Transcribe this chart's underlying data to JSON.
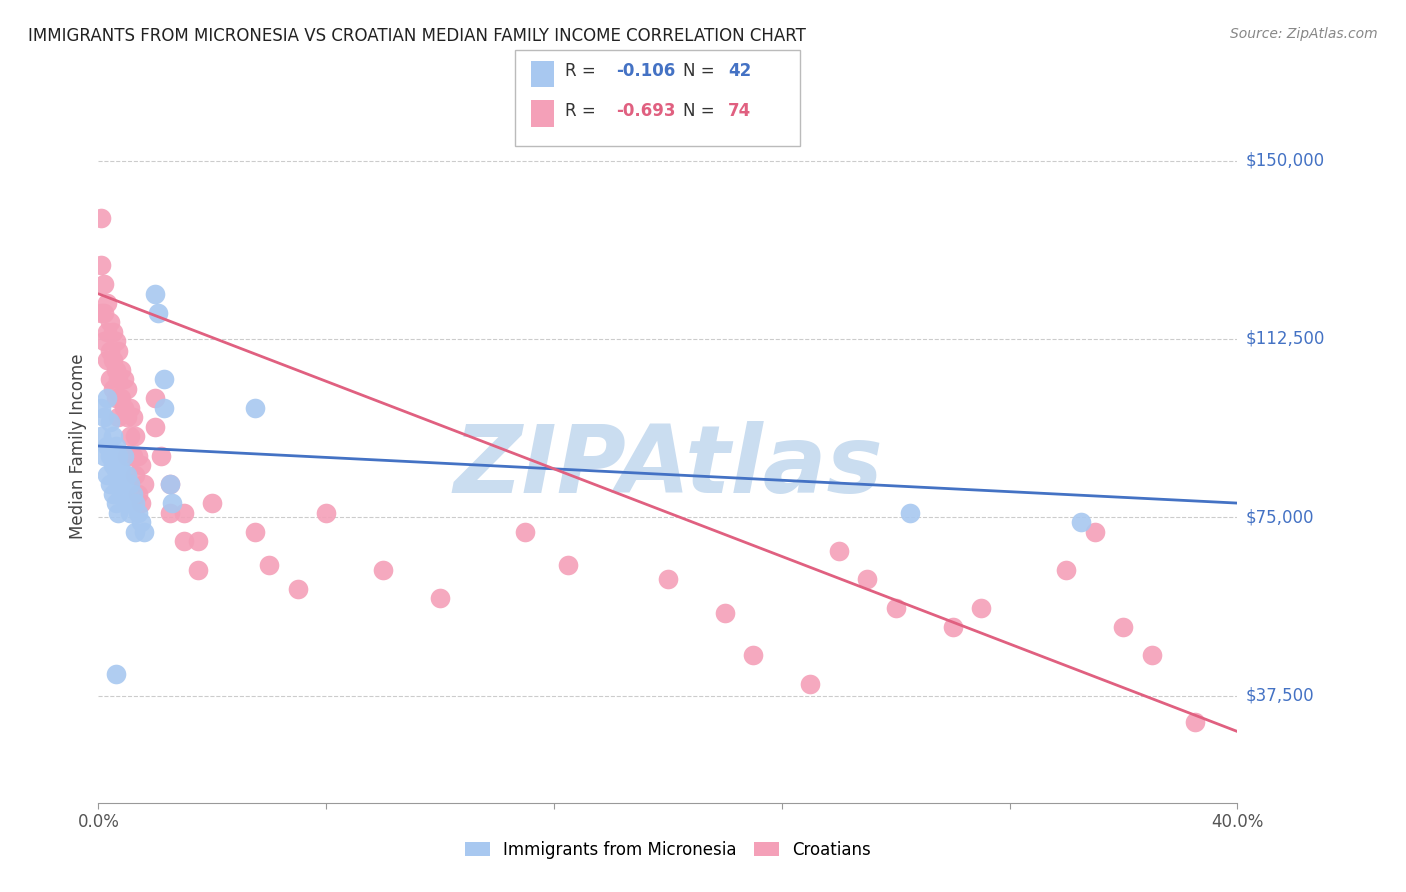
{
  "title": "IMMIGRANTS FROM MICRONESIA VS CROATIAN MEDIAN FAMILY INCOME CORRELATION CHART",
  "source": "Source: ZipAtlas.com",
  "ylabel": "Median Family Income",
  "yticks": [
    37500,
    75000,
    112500,
    150000
  ],
  "ytick_labels": [
    "$37,500",
    "$75,000",
    "$112,500",
    "$150,000"
  ],
  "ylim": [
    15000,
    165000
  ],
  "xlim": [
    0.0,
    0.4
  ],
  "blue_color": "#A8C8F0",
  "pink_color": "#F4A0B8",
  "blue_line_color": "#4472C4",
  "pink_line_color": "#E06080",
  "ytick_color": "#4472C4",
  "watermark": "ZIPAtlas",
  "watermark_color": "#CADDF0",
  "blue_scatter": [
    [
      0.001,
      98000
    ],
    [
      0.001,
      92000
    ],
    [
      0.002,
      96000
    ],
    [
      0.002,
      88000
    ],
    [
      0.003,
      100000
    ],
    [
      0.003,
      90000
    ],
    [
      0.003,
      84000
    ],
    [
      0.004,
      95000
    ],
    [
      0.004,
      88000
    ],
    [
      0.004,
      82000
    ],
    [
      0.005,
      92000
    ],
    [
      0.005,
      86000
    ],
    [
      0.005,
      80000
    ],
    [
      0.006,
      90000
    ],
    [
      0.006,
      85000
    ],
    [
      0.006,
      78000
    ],
    [
      0.007,
      88000
    ],
    [
      0.007,
      82000
    ],
    [
      0.007,
      76000
    ],
    [
      0.008,
      85000
    ],
    [
      0.008,
      80000
    ],
    [
      0.009,
      88000
    ],
    [
      0.009,
      82000
    ],
    [
      0.01,
      84000
    ],
    [
      0.01,
      78000
    ],
    [
      0.011,
      82000
    ],
    [
      0.011,
      76000
    ],
    [
      0.012,
      80000
    ],
    [
      0.013,
      78000
    ],
    [
      0.013,
      72000
    ],
    [
      0.014,
      76000
    ],
    [
      0.015,
      74000
    ],
    [
      0.016,
      72000
    ],
    [
      0.02,
      122000
    ],
    [
      0.021,
      118000
    ],
    [
      0.023,
      104000
    ],
    [
      0.023,
      98000
    ],
    [
      0.025,
      82000
    ],
    [
      0.026,
      78000
    ],
    [
      0.055,
      98000
    ],
    [
      0.006,
      42000
    ],
    [
      0.285,
      76000
    ],
    [
      0.345,
      74000
    ]
  ],
  "pink_scatter": [
    [
      0.001,
      138000
    ],
    [
      0.001,
      128000
    ],
    [
      0.001,
      118000
    ],
    [
      0.002,
      124000
    ],
    [
      0.002,
      118000
    ],
    [
      0.002,
      112000
    ],
    [
      0.003,
      120000
    ],
    [
      0.003,
      114000
    ],
    [
      0.003,
      108000
    ],
    [
      0.004,
      116000
    ],
    [
      0.004,
      110000
    ],
    [
      0.004,
      104000
    ],
    [
      0.005,
      114000
    ],
    [
      0.005,
      108000
    ],
    [
      0.005,
      102000
    ],
    [
      0.006,
      112000
    ],
    [
      0.006,
      106000
    ],
    [
      0.006,
      100000
    ],
    [
      0.007,
      110000
    ],
    [
      0.007,
      104000
    ],
    [
      0.007,
      96000
    ],
    [
      0.008,
      106000
    ],
    [
      0.008,
      100000
    ],
    [
      0.009,
      104000
    ],
    [
      0.009,
      98000
    ],
    [
      0.01,
      102000
    ],
    [
      0.01,
      96000
    ],
    [
      0.01,
      88000
    ],
    [
      0.011,
      98000
    ],
    [
      0.011,
      92000
    ],
    [
      0.012,
      96000
    ],
    [
      0.012,
      88000
    ],
    [
      0.013,
      92000
    ],
    [
      0.013,
      84000
    ],
    [
      0.014,
      88000
    ],
    [
      0.014,
      80000
    ],
    [
      0.015,
      86000
    ],
    [
      0.015,
      78000
    ],
    [
      0.016,
      82000
    ],
    [
      0.02,
      100000
    ],
    [
      0.02,
      94000
    ],
    [
      0.022,
      88000
    ],
    [
      0.025,
      82000
    ],
    [
      0.025,
      76000
    ],
    [
      0.03,
      76000
    ],
    [
      0.03,
      70000
    ],
    [
      0.035,
      70000
    ],
    [
      0.035,
      64000
    ],
    [
      0.04,
      78000
    ],
    [
      0.055,
      72000
    ],
    [
      0.06,
      65000
    ],
    [
      0.07,
      60000
    ],
    [
      0.08,
      76000
    ],
    [
      0.1,
      64000
    ],
    [
      0.12,
      58000
    ],
    [
      0.15,
      72000
    ],
    [
      0.165,
      65000
    ],
    [
      0.2,
      62000
    ],
    [
      0.22,
      55000
    ],
    [
      0.23,
      46000
    ],
    [
      0.25,
      40000
    ],
    [
      0.26,
      68000
    ],
    [
      0.27,
      62000
    ],
    [
      0.28,
      56000
    ],
    [
      0.3,
      52000
    ],
    [
      0.31,
      56000
    ],
    [
      0.34,
      64000
    ],
    [
      0.35,
      72000
    ],
    [
      0.36,
      52000
    ],
    [
      0.37,
      46000
    ],
    [
      0.385,
      32000
    ]
  ],
  "blue_line_x": [
    0.0,
    0.4
  ],
  "blue_line_y": [
    90000,
    78000
  ],
  "pink_line_x": [
    0.0,
    0.4
  ],
  "pink_line_y": [
    122000,
    30000
  ]
}
